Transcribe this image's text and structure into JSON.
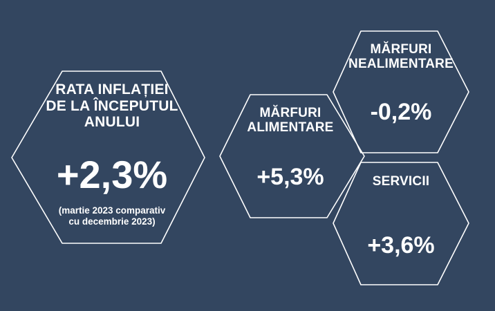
{
  "background_color": "#334660",
  "stroke_color": "#ffffff",
  "main": {
    "title": "RATA INFLAȚIEI\nDE LA ÎNCEPUTUL\nANULUI",
    "value": "+2,3%",
    "note": "(martie 2023 comparativ\ncu decembrie 2023)"
  },
  "food": {
    "title": "MĂRFURI\nALIMENTARE",
    "value": "+5,3%"
  },
  "nonfood": {
    "title": "MĂRFURI\nNEALIMENTARE",
    "value": "-0,2%"
  },
  "services": {
    "title": "SERVICII",
    "value": "+3,6%"
  }
}
